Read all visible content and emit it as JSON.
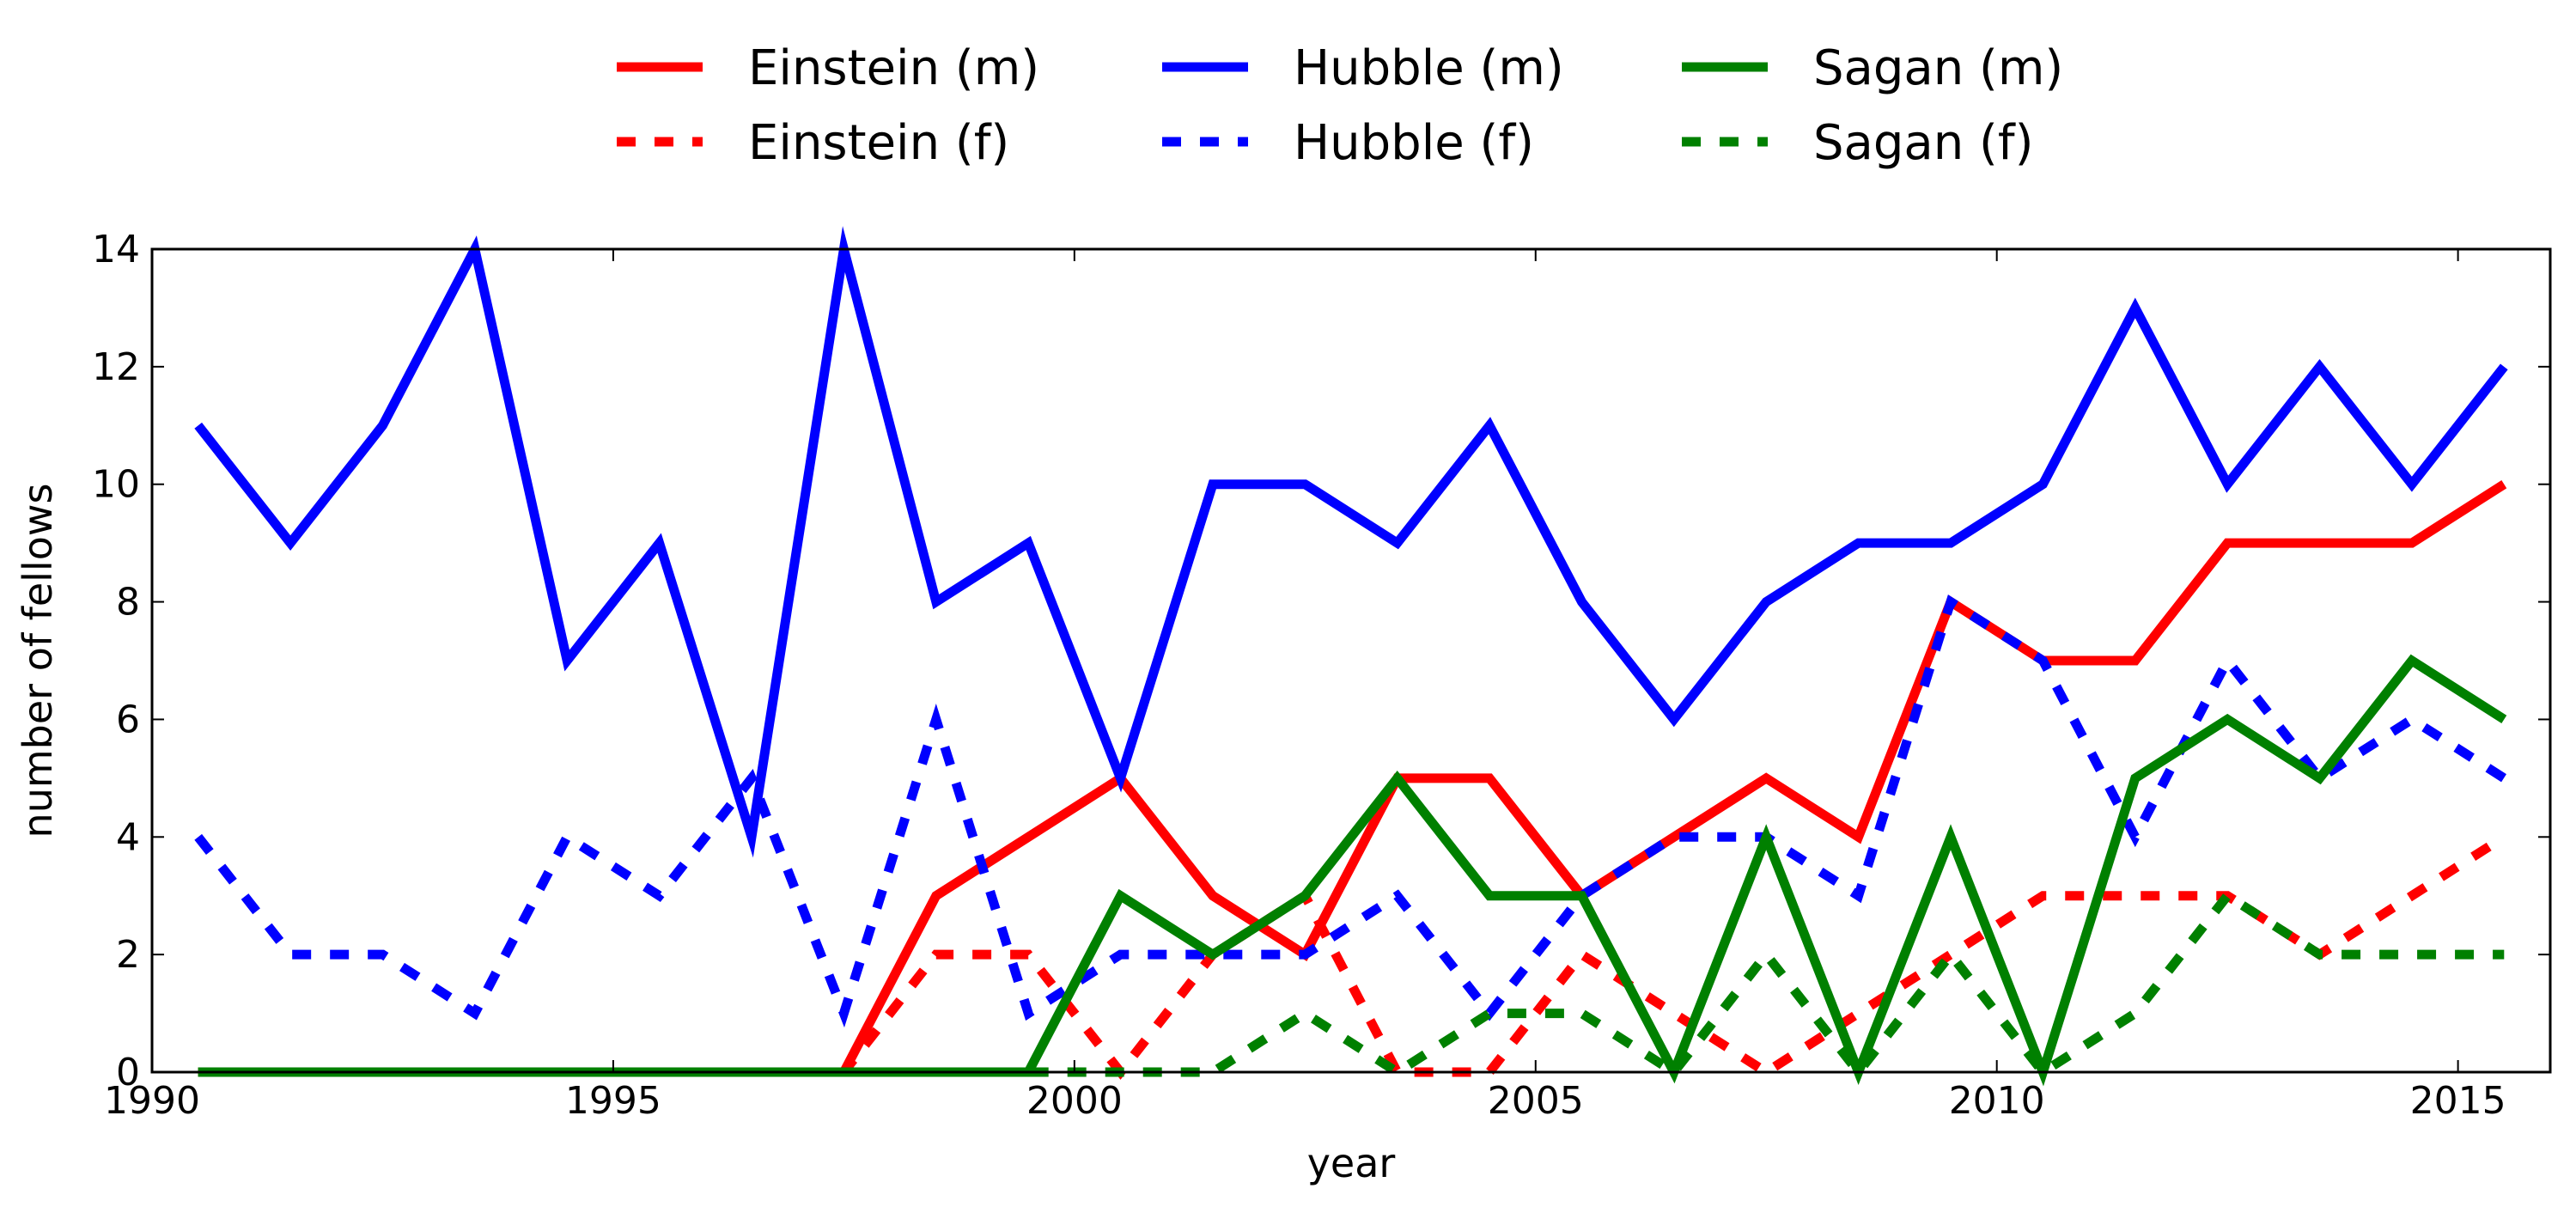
{
  "chart_data": {
    "type": "line",
    "title": "",
    "xlabel": "year",
    "ylabel": "number of fellows",
    "xlim": [
      1990,
      2016
    ],
    "ylim": [
      0,
      14
    ],
    "xticks": [
      1990,
      1995,
      2000,
      2005,
      2010,
      2015
    ],
    "yticks": [
      0,
      2,
      4,
      6,
      8,
      10,
      12,
      14
    ],
    "grid": false,
    "legend_position": "top-center",
    "x": [
      1990.5,
      1991.5,
      1992.5,
      1993.5,
      1994.5,
      1995.5,
      1996.5,
      1997.5,
      1998.5,
      1999.5,
      2000.5,
      2001.5,
      2002.5,
      2003.5,
      2004.5,
      2005.5,
      2006.5,
      2007.5,
      2008.5,
      2009.5,
      2010.5,
      2011.5,
      2012.5,
      2013.5,
      2014.5,
      2015.5
    ],
    "series": [
      {
        "name": "Einstein (m)",
        "color": "#ff0000",
        "dashed": false,
        "values": [
          0,
          0,
          0,
          0,
          0,
          0,
          0,
          0,
          3,
          4,
          5,
          3,
          2,
          5,
          5,
          3,
          4,
          5,
          4,
          8,
          7,
          7,
          9,
          9,
          9,
          10
        ]
      },
      {
        "name": "Einstein (f)",
        "color": "#ff0000",
        "dashed": true,
        "values": [
          0,
          0,
          0,
          0,
          0,
          0,
          0,
          0,
          2,
          2,
          0,
          2,
          3,
          0,
          0,
          2,
          1,
          0,
          1,
          2,
          3,
          3,
          3,
          2,
          3,
          4
        ]
      },
      {
        "name": "Hubble (m)",
        "color": "#0000ff",
        "dashed": false,
        "values": [
          11,
          9,
          11,
          14,
          7,
          9,
          4,
          14,
          8,
          9,
          5,
          10,
          10,
          9,
          11,
          8,
          6,
          8,
          9,
          9,
          10,
          13,
          10,
          12,
          10,
          12
        ]
      },
      {
        "name": "Hubble (f)",
        "color": "#0000ff",
        "dashed": true,
        "values": [
          4,
          2,
          2,
          1,
          4,
          3,
          5,
          1,
          6,
          1,
          2,
          2,
          2,
          3,
          1,
          3,
          4,
          4,
          3,
          8,
          7,
          4,
          7,
          5,
          6,
          5
        ]
      },
      {
        "name": "Sagan (m)",
        "color": "#008000",
        "dashed": false,
        "values": [
          0,
          0,
          0,
          0,
          0,
          0,
          0,
          0,
          0,
          0,
          3,
          2,
          3,
          5,
          3,
          3,
          0,
          4,
          0,
          4,
          0,
          5,
          6,
          5,
          7,
          6
        ]
      },
      {
        "name": "Sagan (f)",
        "color": "#008000",
        "dashed": true,
        "values": [
          0,
          0,
          0,
          0,
          0,
          0,
          0,
          0,
          0,
          0,
          0,
          0,
          1,
          0,
          1,
          1,
          0,
          2,
          0,
          2,
          0,
          1,
          3,
          2,
          2,
          2
        ]
      }
    ]
  }
}
